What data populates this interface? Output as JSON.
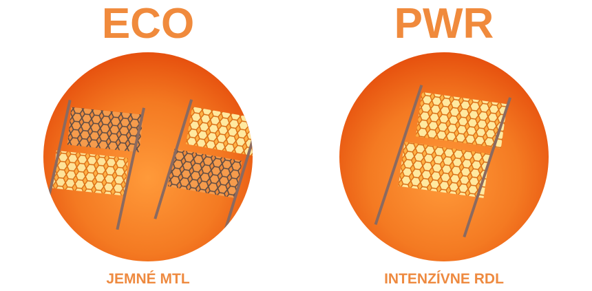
{
  "panels": [
    {
      "title": "ECO",
      "caption": "JEMNÉ MTL"
    },
    {
      "title": "PWR",
      "caption": "INTENZÍVNE RDL"
    }
  ]
}
